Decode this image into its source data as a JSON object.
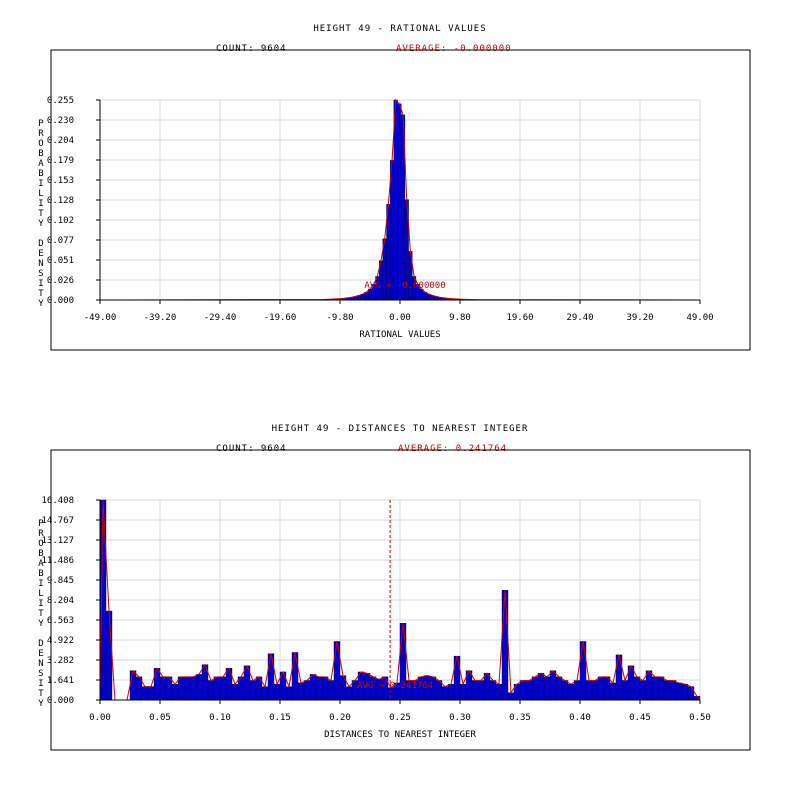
{
  "chart_data": [
    {
      "type": "bar",
      "title": "HEIGHT 49 - RATIONAL VALUES",
      "count_text": "COUNT: 9604",
      "average_text": "AVERAGE: -0.000000",
      "avg_marker_text": "AVG = -0.000000",
      "average": 0.0,
      "xlabel": "RATIONAL VALUES",
      "ylabel": "PROBABILITY DENSITY",
      "xlim": [
        -49.0,
        49.0
      ],
      "ylim": [
        0.0,
        0.255
      ],
      "x_ticks": [
        "-49.00",
        "-39.20",
        "-29.40",
        "-19.60",
        "-9.80",
        "0.00",
        "9.80",
        "19.60",
        "29.40",
        "39.20",
        "49.00"
      ],
      "y_ticks": [
        "0.000",
        "0.026",
        "0.051",
        "0.077",
        "0.102",
        "0.128",
        "0.153",
        "0.179",
        "0.204",
        "0.230",
        "0.255"
      ],
      "grid": true,
      "bin_width": 0.6,
      "bins_x": [
        -13.0,
        -12.4,
        -11.8,
        -11.2,
        -10.6,
        -10.0,
        -9.4,
        -8.8,
        -8.2,
        -7.6,
        -7.0,
        -6.4,
        -5.8,
        -5.2,
        -4.6,
        -4.0,
        -3.4,
        -2.8,
        -2.2,
        -1.6,
        -1.0,
        -0.4,
        0.2,
        0.8,
        1.4,
        2.0,
        2.6,
        3.2,
        3.8,
        4.4,
        5.0,
        5.6,
        6.2,
        6.8,
        7.4,
        8.0,
        8.6,
        9.2,
        9.8,
        10.4,
        11.0,
        11.6,
        12.2,
        12.8
      ],
      "values": [
        0.0006,
        0.0008,
        0.001,
        0.0012,
        0.0015,
        0.0018,
        0.0022,
        0.0028,
        0.0035,
        0.0045,
        0.0058,
        0.0075,
        0.01,
        0.014,
        0.02,
        0.03,
        0.05,
        0.078,
        0.122,
        0.178,
        0.255,
        0.25,
        0.236,
        0.128,
        0.062,
        0.03,
        0.02,
        0.014,
        0.01,
        0.0075,
        0.0058,
        0.0045,
        0.0035,
        0.0028,
        0.0022,
        0.0018,
        0.0015,
        0.0012,
        0.001,
        0.0008,
        0.0006,
        0.0005,
        0.0004,
        0.0003
      ],
      "colors": {
        "bar": "#0000cc",
        "curve": "#cc0000",
        "grid": "#d8d8d8"
      }
    },
    {
      "type": "bar",
      "title": "HEIGHT 49 - DISTANCES TO NEAREST INTEGER",
      "count_text": "COUNT: 9604",
      "average_text": "AVERAGE: 0.241764",
      "avg_marker_text": "AVG = 0.241764",
      "average": 0.241764,
      "xlabel": "DISTANCES TO NEAREST INTEGER",
      "ylabel": "PROBABILITY DENSITY",
      "xlim": [
        0.0,
        0.5
      ],
      "ylim": [
        0.0,
        16.408
      ],
      "x_ticks": [
        "0.00",
        "0.05",
        "0.10",
        "0.15",
        "0.20",
        "0.25",
        "0.30",
        "0.35",
        "0.40",
        "0.45",
        "0.50"
      ],
      "y_ticks": [
        "0.000",
        "1.641",
        "3.282",
        "4.922",
        "6.563",
        "8.204",
        "9.845",
        "11.486",
        "13.127",
        "14.767",
        "16.408"
      ],
      "grid": true,
      "bin_width": 0.005,
      "bins_x": [
        0.0,
        0.005,
        0.01,
        0.015,
        0.02,
        0.025,
        0.03,
        0.035,
        0.04,
        0.045,
        0.05,
        0.055,
        0.06,
        0.065,
        0.07,
        0.075,
        0.08,
        0.085,
        0.09,
        0.095,
        0.1,
        0.105,
        0.11,
        0.115,
        0.12,
        0.125,
        0.13,
        0.135,
        0.14,
        0.145,
        0.15,
        0.155,
        0.16,
        0.165,
        0.17,
        0.175,
        0.18,
        0.185,
        0.19,
        0.195,
        0.2,
        0.205,
        0.21,
        0.215,
        0.22,
        0.225,
        0.23,
        0.235,
        0.24,
        0.245,
        0.25,
        0.255,
        0.26,
        0.265,
        0.27,
        0.275,
        0.28,
        0.285,
        0.29,
        0.295,
        0.3,
        0.305,
        0.31,
        0.315,
        0.32,
        0.325,
        0.33,
        0.335,
        0.34,
        0.345,
        0.35,
        0.355,
        0.36,
        0.365,
        0.37,
        0.375,
        0.38,
        0.385,
        0.39,
        0.395,
        0.4,
        0.405,
        0.41,
        0.415,
        0.42,
        0.425,
        0.43,
        0.435,
        0.44,
        0.445,
        0.45,
        0.455,
        0.46,
        0.465,
        0.47,
        0.475,
        0.48,
        0.485,
        0.49,
        0.495
      ],
      "values": [
        16.408,
        7.3,
        0.0,
        0.0,
        0.0,
        2.4,
        1.9,
        1.1,
        1.1,
        2.6,
        1.9,
        1.9,
        1.3,
        1.9,
        1.9,
        1.9,
        2.1,
        2.9,
        1.6,
        1.9,
        1.9,
        2.6,
        1.3,
        1.9,
        2.8,
        1.6,
        1.9,
        1.1,
        3.8,
        1.3,
        2.3,
        1.1,
        3.9,
        1.4,
        1.6,
        2.1,
        1.9,
        1.9,
        1.6,
        4.8,
        2.0,
        1.1,
        1.6,
        2.3,
        2.2,
        1.9,
        1.7,
        1.9,
        1.0,
        1.4,
        6.3,
        1.6,
        1.6,
        1.9,
        2.0,
        1.9,
        1.6,
        1.1,
        1.3,
        3.6,
        1.3,
        2.4,
        1.6,
        1.6,
        2.2,
        1.6,
        1.3,
        9.0,
        0.6,
        1.3,
        1.6,
        1.6,
        1.9,
        2.2,
        1.9,
        2.4,
        1.9,
        1.6,
        1.3,
        1.6,
        4.8,
        1.6,
        1.6,
        1.9,
        1.9,
        1.4,
        3.7,
        1.6,
        2.8,
        1.9,
        1.6,
        2.4,
        1.9,
        1.9,
        1.6,
        1.6,
        1.4,
        1.3,
        1.1,
        0.3
      ],
      "colors": {
        "bar": "#0000cc",
        "curve": "#cc0000",
        "grid": "#d8d8d8",
        "avg_line": "#cc0000"
      }
    }
  ]
}
